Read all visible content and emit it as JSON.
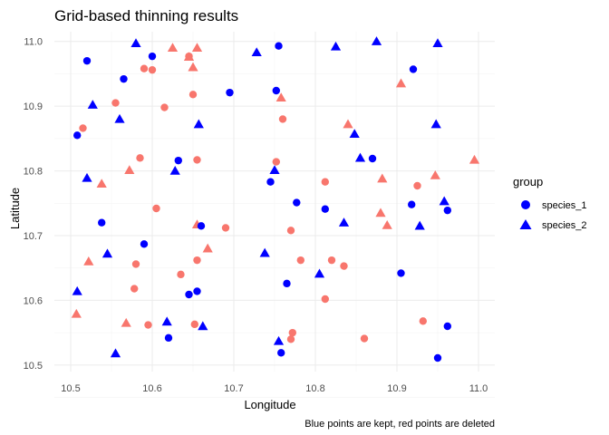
{
  "chart_data": {
    "type": "scatter",
    "title": "Grid-based thinning results",
    "xlabel": "Longitude",
    "ylabel": "Latitude",
    "caption": "Blue points are kept, red points are deleted",
    "xlim": [
      10.48,
      11.02
    ],
    "ylim": [
      10.49,
      11.015
    ],
    "x_ticks": [
      "10.5",
      "10.6",
      "10.7",
      "10.8",
      "10.9",
      "11.0"
    ],
    "y_ticks": [
      "10.5",
      "10.6",
      "10.7",
      "10.8",
      "10.9",
      "11.0"
    ],
    "grid": true,
    "legend": {
      "title": "group",
      "position": "right",
      "entries": [
        {
          "label": "species_1",
          "shape": "circle",
          "color": "#0000ff"
        },
        {
          "label": "species_2",
          "shape": "triangle",
          "color": "#0000ff"
        }
      ]
    },
    "colors": {
      "kept": "#0000ff",
      "deleted": "#f8766d"
    },
    "series": [
      {
        "status": "kept",
        "group": "species_1",
        "points": [
          [
            10.52,
            10.97
          ],
          [
            10.6,
            10.977
          ],
          [
            10.565,
            10.942
          ],
          [
            10.755,
            10.993
          ],
          [
            10.508,
            10.855
          ],
          [
            10.695,
            10.921
          ],
          [
            10.752,
            10.924
          ],
          [
            10.92,
            10.957
          ],
          [
            10.632,
            10.816
          ],
          [
            10.538,
            10.72
          ],
          [
            10.66,
            10.715
          ],
          [
            10.59,
            10.687
          ],
          [
            10.745,
            10.783
          ],
          [
            10.777,
            10.751
          ],
          [
            10.812,
            10.741
          ],
          [
            10.87,
            10.819
          ],
          [
            10.918,
            10.748
          ],
          [
            10.962,
            10.739
          ],
          [
            10.905,
            10.642
          ],
          [
            10.765,
            10.626
          ],
          [
            10.655,
            10.614
          ],
          [
            10.645,
            10.609
          ],
          [
            10.62,
            10.542
          ],
          [
            10.758,
            10.519
          ],
          [
            10.95,
            10.511
          ],
          [
            10.962,
            10.56
          ]
        ]
      },
      {
        "status": "deleted",
        "group": "species_1",
        "points": [
          [
            10.59,
            10.958
          ],
          [
            10.6,
            10.956
          ],
          [
            10.645,
            10.977
          ],
          [
            10.65,
            10.918
          ],
          [
            10.555,
            10.905
          ],
          [
            10.615,
            10.898
          ],
          [
            10.76,
            10.88
          ],
          [
            10.515,
            10.866
          ],
          [
            10.585,
            10.82
          ],
          [
            10.655,
            10.817
          ],
          [
            10.752,
            10.814
          ],
          [
            10.812,
            10.783
          ],
          [
            10.925,
            10.777
          ],
          [
            10.605,
            10.742
          ],
          [
            10.69,
            10.712
          ],
          [
            10.77,
            10.708
          ],
          [
            10.655,
            10.662
          ],
          [
            10.58,
            10.656
          ],
          [
            10.782,
            10.662
          ],
          [
            10.82,
            10.662
          ],
          [
            10.835,
            10.653
          ],
          [
            10.635,
            10.64
          ],
          [
            10.578,
            10.618
          ],
          [
            10.812,
            10.602
          ],
          [
            10.595,
            10.562
          ],
          [
            10.652,
            10.563
          ],
          [
            10.772,
            10.55
          ],
          [
            10.77,
            10.54
          ],
          [
            10.86,
            10.541
          ],
          [
            10.932,
            10.568
          ]
        ]
      },
      {
        "status": "kept",
        "group": "species_2",
        "points": [
          [
            10.58,
            10.997
          ],
          [
            10.728,
            10.983
          ],
          [
            10.825,
            10.992
          ],
          [
            10.875,
            11.0
          ],
          [
            10.95,
            10.997
          ],
          [
            10.527,
            10.902
          ],
          [
            10.56,
            10.88
          ],
          [
            10.657,
            10.872
          ],
          [
            10.848,
            10.857
          ],
          [
            10.948,
            10.872
          ],
          [
            10.855,
            10.82
          ],
          [
            10.75,
            10.801
          ],
          [
            10.628,
            10.8
          ],
          [
            10.52,
            10.789
          ],
          [
            10.958,
            10.753
          ],
          [
            10.928,
            10.715
          ],
          [
            10.835,
            10.72
          ],
          [
            10.738,
            10.673
          ],
          [
            10.545,
            10.672
          ],
          [
            10.805,
            10.641
          ],
          [
            10.508,
            10.614
          ],
          [
            10.618,
            10.567
          ],
          [
            10.662,
            10.56
          ],
          [
            10.555,
            10.518
          ],
          [
            10.755,
            10.537
          ]
        ]
      },
      {
        "status": "deleted",
        "group": "species_2",
        "points": [
          [
            10.625,
            10.99
          ],
          [
            10.655,
            10.99
          ],
          [
            10.645,
            10.976
          ],
          [
            10.65,
            10.96
          ],
          [
            10.758,
            10.913
          ],
          [
            10.905,
            10.935
          ],
          [
            10.84,
            10.872
          ],
          [
            10.572,
            10.801
          ],
          [
            10.538,
            10.78
          ],
          [
            10.882,
            10.788
          ],
          [
            10.947,
            10.793
          ],
          [
            10.995,
            10.817
          ],
          [
            10.655,
            10.717
          ],
          [
            10.668,
            10.68
          ],
          [
            10.88,
            10.735
          ],
          [
            10.888,
            10.716
          ],
          [
            10.522,
            10.66
          ],
          [
            10.507,
            10.579
          ],
          [
            10.568,
            10.565
          ]
        ]
      }
    ]
  }
}
